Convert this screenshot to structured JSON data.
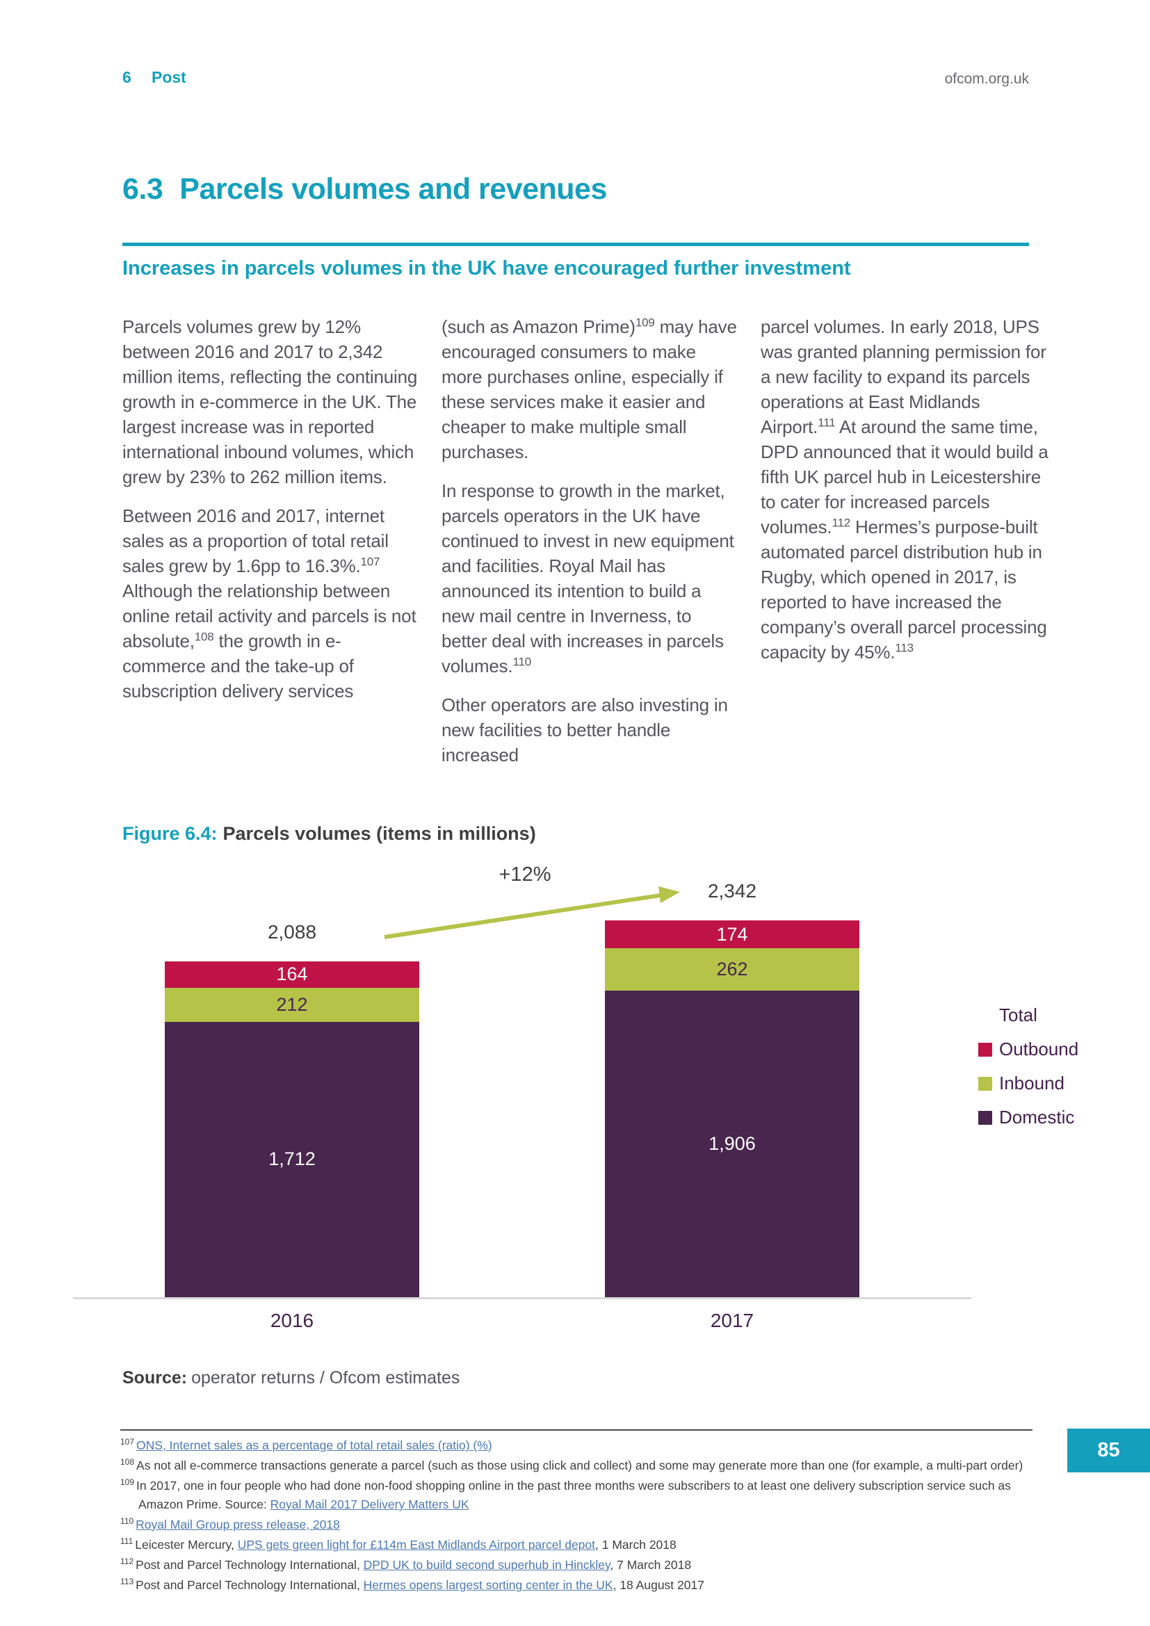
{
  "header": {
    "chapter_number": "6",
    "chapter_title": "Post",
    "site": "ofcom.org.uk"
  },
  "section": {
    "number": "6.3",
    "title": "Parcels volumes and revenues"
  },
  "subtitle": "Increases in parcels volumes in the UK have encouraged further investment",
  "columns": [
    {
      "paragraphs": [
        [
          {
            "text": "Parcels volumes grew by 12% between 2016 and 2017 to 2,342 million items, reflecting the continuing growth in e-commerce in the UK. The largest increase was in reported international inbound volumes, which grew by 23% to 262 million items."
          }
        ],
        [
          {
            "text": "Between 2016 and 2017, internet sales as a proportion of total retail sales grew by 1.6pp to 16.3%."
          },
          {
            "sup": "107"
          },
          {
            "text": " Although the relationship between online retail activity and parcels is not absolute,"
          },
          {
            "sup": "108"
          },
          {
            "text": " the growth in e-commerce and the take-up of subscription delivery services"
          }
        ]
      ]
    },
    {
      "paragraphs": [
        [
          {
            "text": "(such as Amazon Prime)"
          },
          {
            "sup": "109"
          },
          {
            "text": " may have encouraged consumers to make more purchases online, especially if these services make it easier and cheaper to make multiple small purchases."
          }
        ],
        [
          {
            "text": "In response to growth in the market, parcels operators in the UK have continued to invest in new equipment and facilities. Royal Mail has announced its intention to build a new mail centre in Inverness, to better deal with increases in parcels volumes."
          },
          {
            "sup": "110"
          }
        ],
        [
          {
            "text": "Other operators are also investing in new facilities to better handle increased"
          }
        ]
      ]
    },
    {
      "paragraphs": [
        [
          {
            "text": "parcel volumes. In early 2018, UPS was granted planning permission for a new facility to expand its parcels operations at East Midlands Airport."
          },
          {
            "sup": "111"
          },
          {
            "text": " At around the same time, DPD announced that it would build a fifth UK parcel hub in Leicestershire to cater for increased parcels volumes."
          },
          {
            "sup": "112"
          },
          {
            "text": " Hermes’s purpose-built automated parcel distribution hub in Rugby, which opened in 2017, is reported to have increased the company’s overall parcel processing capacity by 45%."
          },
          {
            "sup": "113"
          }
        ]
      ]
    }
  ],
  "figure": {
    "label": "Figure 6.4:",
    "title": "Parcels volumes (items in millions)"
  },
  "chart_data": {
    "type": "bar",
    "subtype": "stacked",
    "title": "Parcels volumes (items in millions)",
    "categories": [
      "2016",
      "2017"
    ],
    "series": [
      {
        "name": "Outbound",
        "color": "#bf1347",
        "label_color": "#ffffff",
        "values": [
          164,
          174
        ]
      },
      {
        "name": "Inbound",
        "color": "#b5c349",
        "label_color": "#48264d",
        "values": [
          212,
          262
        ]
      },
      {
        "name": "Domestic",
        "color": "#48264d",
        "label_color": "#ffffff",
        "values": [
          1712,
          1906
        ]
      }
    ],
    "totals": [
      2088,
      2342
    ],
    "annotation": "+12%",
    "legend": [
      "Total",
      "Outbound",
      "Inbound",
      "Domestic"
    ],
    "legend_position": "right",
    "xlabel": "",
    "ylabel": "",
    "ylim": [
      0,
      2500
    ],
    "grid": false
  },
  "source": {
    "label": "Source:",
    "text": "operator returns / Ofcom estimates"
  },
  "footnotes": [
    {
      "num": "107",
      "runs": [
        {
          "link": "ONS, Internet sales as a percentage of total retail sales (ratio) (%)"
        }
      ]
    },
    {
      "num": "108",
      "runs": [
        {
          "text": "As not all e-commerce transactions generate a parcel (such as those using click and collect) and some may generate more than one (for example, a multi-part order)"
        }
      ]
    },
    {
      "num": "109",
      "runs": [
        {
          "text": "In 2017, one in four people who had done non-food shopping online in the past three months were subscribers to at least one delivery subscription service such as Amazon Prime. Source: "
        },
        {
          "link": "Royal Mail 2017 Delivery Matters UK"
        }
      ]
    },
    {
      "num": "110",
      "runs": [
        {
          "link": "Royal Mail Group press release, 2018"
        }
      ]
    },
    {
      "num": "111",
      "runs": [
        {
          "text": "Leicester Mercury, "
        },
        {
          "link": "UPS gets green light for £114m East Midlands Airport parcel depot"
        },
        {
          "text": ", 1 March 2018"
        }
      ]
    },
    {
      "num": "112",
      "runs": [
        {
          "text": "Post and Parcel Technology International, "
        },
        {
          "link": "DPD UK to build second superhub in Hinckley"
        },
        {
          "text": ", 7 March 2018"
        }
      ]
    },
    {
      "num": "113",
      "runs": [
        {
          "text": "Post and Parcel Technology International, "
        },
        {
          "link": "Hermes opens largest sorting center in the UK"
        },
        {
          "text": ", 18 August 2017"
        }
      ]
    }
  ],
  "page_number": "85",
  "colors": {
    "accent_teal": "#14a0bd",
    "outbound_red": "#bf1347",
    "inbound_green": "#b5c349",
    "domestic_purple": "#48264d",
    "plum_text": "#452050",
    "link_blue": "#4e79b2",
    "arrow_green": "#b5c349"
  }
}
